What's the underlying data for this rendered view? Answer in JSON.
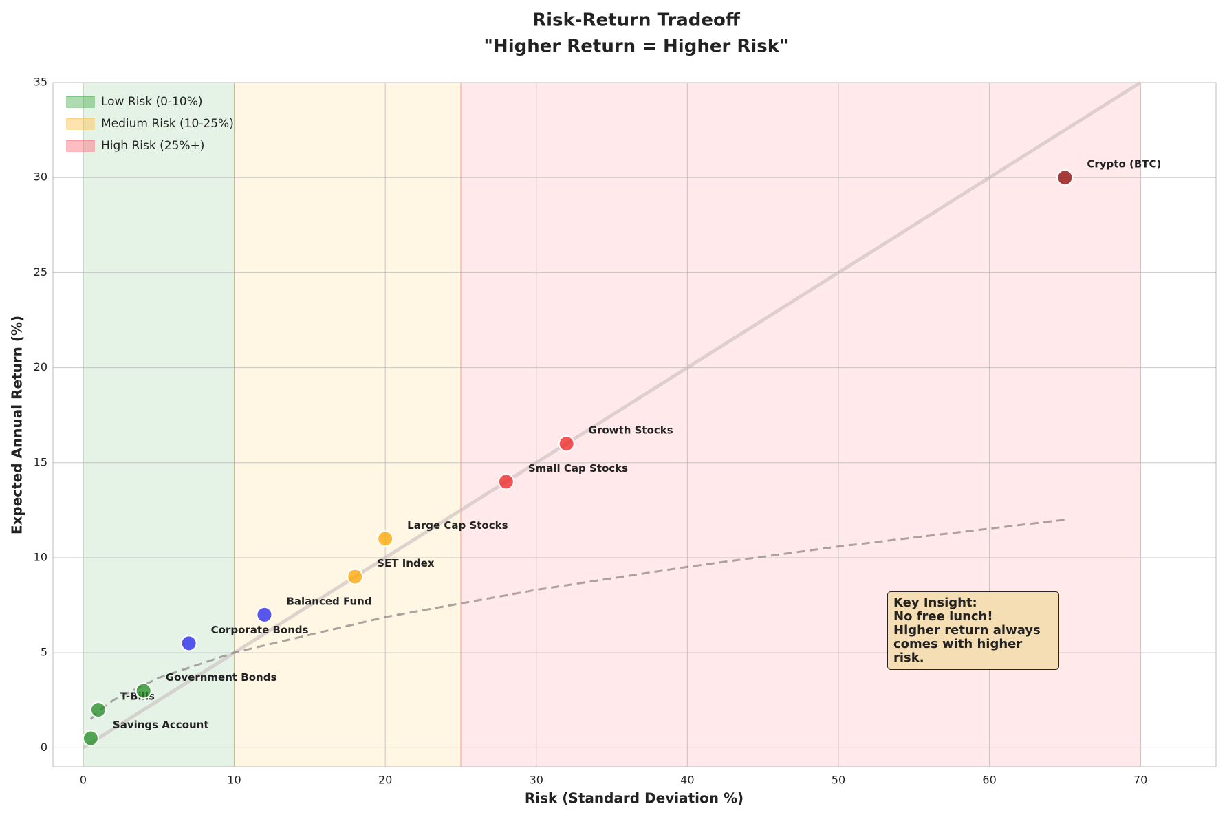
{
  "chart_data": {
    "type": "scatter",
    "title": "Risk-Return Tradeoff",
    "subtitle": "\"Higher Return = Higher Risk\"",
    "x_label": "Risk (Standard Deviation %)",
    "y_label": "Expected Annual Return (%)",
    "xlim": [
      -2,
      75
    ],
    "ylim": [
      -1,
      35
    ],
    "xticks": [
      0,
      10,
      20,
      30,
      40,
      50,
      60,
      70
    ],
    "yticks": [
      0,
      5,
      10,
      15,
      20,
      25,
      30,
      35
    ],
    "grid": true,
    "legend": "upper-left",
    "regions": [
      {
        "name": "Low Risk (0-10%)",
        "color": "#4caf50",
        "range": [
          0,
          10
        ]
      },
      {
        "name": "Medium Risk (10-25%)",
        "color": "#ffc04d",
        "range": [
          10,
          25
        ]
      },
      {
        "name": "High Risk (25%+)",
        "color": "#ff6b7a",
        "range": [
          25,
          70
        ]
      }
    ],
    "points": {
      "labels": [
        "Savings Account",
        "T-Bills",
        "Government Bonds",
        "Corporate Bonds",
        "Balanced Fund",
        "SET Index",
        "Large Cap Stocks",
        "Small Cap Stocks",
        "Growth Stocks",
        "Crypto (BTC)"
      ],
      "x": [
        0.5,
        1,
        4,
        7,
        12,
        18,
        20,
        28,
        32,
        65
      ],
      "values": [
        0.5,
        2,
        3,
        5.5,
        7,
        9,
        11,
        14,
        16,
        30
      ],
      "colors": [
        "#228b22",
        "#228b22",
        "#228b22",
        "#2222ee",
        "#2222ee",
        "#ffa500",
        "#ffa500",
        "#ee2222",
        "#ee2222",
        "#8b0000"
      ]
    },
    "trend": {
      "x": [
        0.5,
        1,
        2,
        5,
        10,
        20,
        30,
        40,
        50,
        65
      ],
      "values": [
        1.5,
        1.92,
        2.51,
        3.68,
        5.01,
        6.88,
        8.31,
        9.52,
        10.59,
        12.0
      ],
      "color": "#8a8080"
    },
    "reference_line": {
      "x": [
        0,
        70
      ],
      "values": [
        0,
        35
      ],
      "color": "#c8bcbc"
    },
    "annotation": [
      "Key Insight:",
      "No free lunch!",
      "Higher return always",
      "comes with higher risk."
    ]
  }
}
